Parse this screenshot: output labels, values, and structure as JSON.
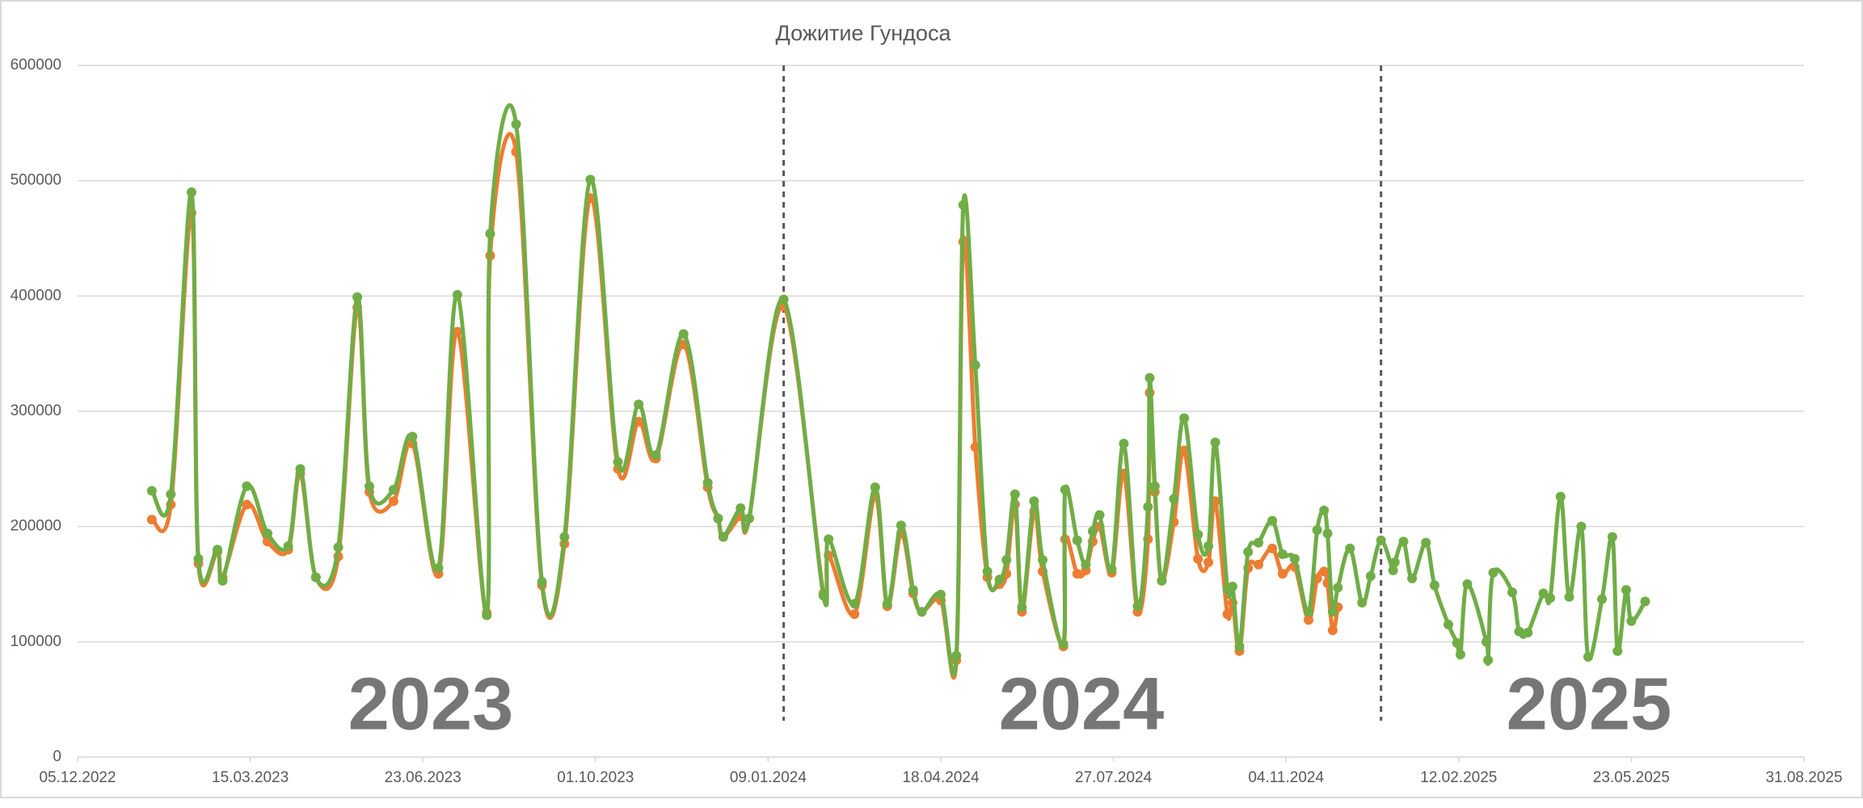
{
  "chart_data": {
    "type": "line",
    "title": "Дожитие Гундоса",
    "annotations": [
      "2023",
      "2024",
      "2025"
    ],
    "dividers": [
      "2024-01-18",
      "2024-12-29"
    ],
    "x": [
      "2023-01-17",
      "2023-01-28",
      "2023-02-09",
      "2023-02-13",
      "2023-02-24",
      "2023-02-27",
      "2023-03-13",
      "2023-03-25",
      "2023-04-06",
      "2023-04-13",
      "2023-04-22",
      "2023-05-05",
      "2023-05-16",
      "2023-05-23",
      "2023-06-06",
      "2023-06-17",
      "2023-07-02",
      "2023-07-13",
      "2023-07-30",
      "2023-08-01",
      "2023-08-16",
      "2023-08-31",
      "2023-09-13",
      "2023-09-28",
      "2023-10-14",
      "2023-10-26",
      "2023-11-05",
      "2023-11-21",
      "2023-12-05",
      "2023-12-11",
      "2023-12-14",
      "2023-12-24",
      "2023-12-29",
      "2024-01-18",
      "2024-02-10",
      "2024-02-13",
      "2024-02-28",
      "2024-03-11",
      "2024-03-18",
      "2024-03-26",
      "2024-04-02",
      "2024-04-07",
      "2024-04-18",
      "2024-04-27",
      "2024-05-01",
      "2024-05-08",
      "2024-05-15",
      "2024-05-22",
      "2024-05-26",
      "2024-05-31",
      "2024-06-04",
      "2024-06-11",
      "2024-06-16",
      "2024-06-28",
      "2024-06-29",
      "2024-07-06",
      "2024-07-11",
      "2024-07-15",
      "2024-07-19",
      "2024-07-26",
      "2024-08-02",
      "2024-08-10",
      "2024-08-16",
      "2024-08-17",
      "2024-08-20",
      "2024-08-24",
      "2024-08-31",
      "2024-09-06",
      "2024-09-14",
      "2024-09-20",
      "2024-09-24",
      "2024-10-01",
      "2024-10-04",
      "2024-10-08",
      "2024-10-13",
      "2024-10-19",
      "2024-10-27",
      "2024-11-02",
      "2024-11-09",
      "2024-11-17",
      "2024-11-22",
      "2024-11-26",
      "2024-11-28",
      "2024-12-01",
      "2024-12-04",
      "2024-12-11",
      "2024-12-18",
      "2024-12-23",
      "2024-12-29",
      "2025-01-05",
      "2025-01-06",
      "2025-01-11",
      "2025-01-16",
      "2025-01-24",
      "2025-01-29",
      "2025-02-06",
      "2025-02-11",
      "2025-02-13",
      "2025-02-17",
      "2025-02-28",
      "2025-03-01",
      "2025-03-04",
      "2025-03-15",
      "2025-03-19",
      "2025-03-24",
      "2025-04-02",
      "2025-04-06",
      "2025-04-12",
      "2025-04-17",
      "2025-04-24",
      "2025-04-28",
      "2025-05-06",
      "2025-05-12",
      "2025-05-15",
      "2025-05-20",
      "2025-05-23",
      "2025-05-31"
    ],
    "series": [
      {
        "color": "#ED7D31",
        "values": [
          206000,
          219000,
          472000,
          168000,
          178000,
          156000,
          219000,
          187000,
          180000,
          246000,
          156000,
          174000,
          390000,
          230000,
          222000,
          272000,
          159000,
          369000,
          125000,
          435000,
          525000,
          149000,
          185000,
          485000,
          250000,
          291000,
          259000,
          358000,
          234000,
          207000,
          191000,
          209000,
          207000,
          391000,
          142000,
          175000,
          124000,
          226000,
          131000,
          194000,
          142000,
          126000,
          136000,
          84000,
          447000,
          269000,
          156000,
          150000,
          159000,
          219000,
          126000,
          213000,
          161000,
          96000,
          189000,
          159000,
          162000,
          187000,
          200000,
          160000,
          246000,
          126000,
          189000,
          316000,
          230000,
          153000,
          204000,
          266000,
          172000,
          169000,
          222000,
          124000,
          134000,
          92000,
          164000,
          167000,
          181000,
          159000,
          165000,
          119000,
          155000,
          161000,
          151000,
          110000,
          130000,
          null,
          null,
          null,
          null,
          null,
          null,
          null,
          null,
          null,
          null,
          null,
          null,
          null,
          null,
          null,
          null,
          null,
          null,
          null,
          null,
          null,
          null,
          null,
          null,
          null,
          null,
          null,
          null,
          null,
          null,
          null,
          null
        ]
      },
      {
        "color": "#70AD47",
        "values": [
          231000,
          228000,
          490000,
          172000,
          180000,
          153000,
          235000,
          194000,
          183000,
          250000,
          156000,
          182000,
          399000,
          235000,
          232000,
          278000,
          164000,
          401000,
          123000,
          454000,
          549000,
          152000,
          191000,
          501000,
          256000,
          306000,
          262000,
          367000,
          238000,
          207000,
          191000,
          216000,
          207000,
          397000,
          140000,
          189000,
          133000,
          234000,
          133000,
          201000,
          145000,
          126000,
          141000,
          88000,
          479000,
          340000,
          161000,
          154000,
          171000,
          228000,
          130000,
          222000,
          171000,
          98000,
          232000,
          188000,
          167000,
          196000,
          210000,
          163000,
          272000,
          131000,
          217000,
          329000,
          235000,
          153000,
          224000,
          294000,
          193000,
          183000,
          273000,
          146000,
          148000,
          96000,
          178000,
          186000,
          205000,
          176000,
          172000,
          126000,
          197000,
          214000,
          194000,
          126000,
          147000,
          181000,
          134000,
          157000,
          188000,
          162000,
          169000,
          187000,
          155000,
          186000,
          149000,
          115000,
          99000,
          89000,
          150000,
          100000,
          84000,
          160000,
          143000,
          109000,
          108000,
          142000,
          138000,
          226000,
          139000,
          200000,
          87000,
          137000,
          191000,
          92000,
          145000,
          118000,
          135000
        ]
      }
    ],
    "xlim": [
      "2022-12-05",
      "2025-08-31"
    ],
    "xticks": [
      {
        "value": "2022-12-05",
        "label": "05.12.2022"
      },
      {
        "value": "2023-03-15",
        "label": "15.03.2023"
      },
      {
        "value": "2023-06-23",
        "label": "23.06.2023"
      },
      {
        "value": "2023-10-01",
        "label": "01.10.2023"
      },
      {
        "value": "2024-01-09",
        "label": "09.01.2024"
      },
      {
        "value": "2024-04-18",
        "label": "18.04.2024"
      },
      {
        "value": "2024-07-27",
        "label": "27.07.2024"
      },
      {
        "value": "2024-11-04",
        "label": "04.11.2024"
      },
      {
        "value": "2025-02-12",
        "label": "12.02.2025"
      },
      {
        "value": "2025-05-23",
        "label": "23.05.2025"
      },
      {
        "value": "2025-08-31",
        "label": "31.08.2025"
      }
    ],
    "ylim": [
      0,
      600000
    ],
    "yticks": [
      0,
      100000,
      200000,
      300000,
      400000,
      500000,
      600000
    ],
    "grid": true
  }
}
